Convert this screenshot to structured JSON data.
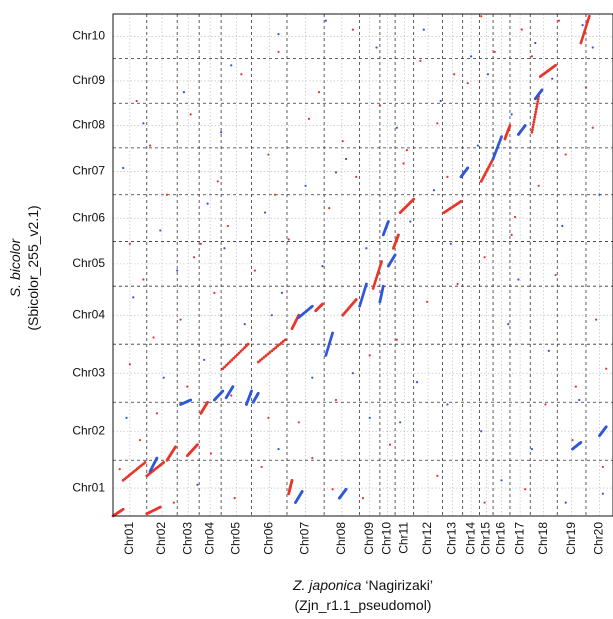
{
  "chart_data": {
    "type": "scatter",
    "title": "",
    "xlabel": {
      "species": "Z. japonica",
      "cultivar": " ‘Nagirizaki’",
      "assembly": "(Zjn_r1.1_pseudomol)"
    },
    "ylabel": {
      "species": "S. bicolor",
      "assembly": "(Sbicolor_255_v2.1)"
    },
    "x_chromosomes": [
      {
        "name": "Chr01",
        "start": 0.0,
        "end": 1.0
      },
      {
        "name": "Chr02",
        "start": 1.0,
        "end": 1.9
      },
      {
        "name": "Chr03",
        "start": 1.9,
        "end": 2.55
      },
      {
        "name": "Chr04",
        "start": 2.55,
        "end": 3.2
      },
      {
        "name": "Chr05",
        "start": 3.2,
        "end": 4.1
      },
      {
        "name": "Chr06",
        "start": 4.1,
        "end": 5.15
      },
      {
        "name": "Chr07",
        "start": 5.15,
        "end": 6.25
      },
      {
        "name": "Chr08",
        "start": 6.25,
        "end": 7.3
      },
      {
        "name": "Chr09",
        "start": 7.3,
        "end": 7.9
      },
      {
        "name": "Chr10",
        "start": 7.9,
        "end": 8.35
      },
      {
        "name": "Chr11",
        "start": 8.35,
        "end": 8.9
      },
      {
        "name": "Chr12",
        "start": 8.9,
        "end": 9.75
      },
      {
        "name": "Chr13",
        "start": 9.75,
        "end": 10.35
      },
      {
        "name": "Chr14",
        "start": 10.35,
        "end": 10.85
      },
      {
        "name": "Chr15",
        "start": 10.85,
        "end": 11.25
      },
      {
        "name": "Chr16",
        "start": 11.25,
        "end": 11.75
      },
      {
        "name": "Chr17",
        "start": 11.75,
        "end": 12.35
      },
      {
        "name": "Chr18",
        "start": 12.35,
        "end": 13.15
      },
      {
        "name": "Chr19",
        "start": 13.15,
        "end": 14.0
      },
      {
        "name": "Chr20",
        "start": 14.0,
        "end": 14.8
      }
    ],
    "y_chromosomes": [
      {
        "name": "Chr01",
        "start": 0.0,
        "end": 1.25
      },
      {
        "name": "Chr02",
        "start": 1.25,
        "end": 2.55
      },
      {
        "name": "Chr03",
        "start": 2.55,
        "end": 3.85
      },
      {
        "name": "Chr04",
        "start": 3.85,
        "end": 5.15
      },
      {
        "name": "Chr05",
        "start": 5.15,
        "end": 6.15
      },
      {
        "name": "Chr06",
        "start": 6.15,
        "end": 7.2
      },
      {
        "name": "Chr07",
        "start": 7.2,
        "end": 8.25
      },
      {
        "name": "Chr08",
        "start": 8.25,
        "end": 9.25
      },
      {
        "name": "Chr09",
        "start": 9.25,
        "end": 10.25
      },
      {
        "name": "Chr10",
        "start": 10.25,
        "end": 11.25
      }
    ],
    "xlim": [
      0,
      14.8
    ],
    "ylim": [
      0,
      11.25
    ],
    "grid": true,
    "series": [
      {
        "color": "#e8352a",
        "segments": [
          [
            [
              0.0,
              0.0
            ],
            [
              0.3,
              0.15
            ]
          ],
          [
            [
              1.0,
              0.05
            ],
            [
              1.4,
              0.2
            ]
          ],
          [
            [
              0.3,
              0.8
            ],
            [
              0.95,
              1.2
            ]
          ],
          [
            [
              1.0,
              0.9
            ],
            [
              1.5,
              1.2
            ]
          ],
          [
            [
              1.6,
              1.25
            ],
            [
              1.85,
              1.55
            ]
          ],
          [
            [
              2.2,
              1.35
            ],
            [
              2.5,
              1.6
            ]
          ],
          [
            [
              2.6,
              2.3
            ],
            [
              2.8,
              2.55
            ]
          ],
          [
            [
              3.25,
              3.3
            ],
            [
              4.0,
              3.85
            ]
          ],
          [
            [
              4.3,
              3.45
            ],
            [
              5.1,
              3.95
            ]
          ],
          [
            [
              5.3,
              4.2
            ],
            [
              5.5,
              4.5
            ]
          ],
          [
            [
              6.0,
              4.6
            ],
            [
              6.2,
              4.75
            ]
          ],
          [
            [
              6.8,
              4.5
            ],
            [
              7.2,
              4.85
            ]
          ],
          [
            [
              7.7,
              5.1
            ],
            [
              7.95,
              5.7
            ]
          ],
          [
            [
              8.3,
              6.0
            ],
            [
              8.45,
              6.3
            ]
          ],
          [
            [
              8.5,
              6.8
            ],
            [
              8.9,
              7.1
            ]
          ],
          [
            [
              9.8,
              6.8
            ],
            [
              10.3,
              7.05
            ]
          ],
          [
            [
              10.9,
              7.5
            ],
            [
              11.25,
              8.0
            ]
          ],
          [
            [
              11.6,
              8.45
            ],
            [
              11.75,
              8.75
            ]
          ],
          [
            [
              12.4,
              8.6
            ],
            [
              12.6,
              9.4
            ]
          ],
          [
            [
              12.65,
              9.85
            ],
            [
              13.1,
              10.1
            ]
          ],
          [
            [
              13.85,
              10.6
            ],
            [
              14.1,
              11.2
            ]
          ],
          [
            [
              5.2,
              0.5
            ],
            [
              5.3,
              0.8
            ]
          ]
        ],
        "points": [
          [
            0.2,
            1.05
          ],
          [
            0.8,
            1.7
          ],
          [
            1.3,
            2.3
          ],
          [
            2.2,
            2.9
          ],
          [
            3.5,
            2.7
          ],
          [
            4.6,
            2.2
          ],
          [
            5.9,
            1.3
          ],
          [
            6.6,
            2.6
          ],
          [
            7.6,
            3.6
          ],
          [
            8.4,
            3.95
          ],
          [
            9.3,
            4.8
          ],
          [
            10.2,
            5.2
          ],
          [
            11.0,
            5.8
          ],
          [
            11.8,
            6.3
          ],
          [
            12.6,
            7.4
          ],
          [
            13.4,
            8.1
          ],
          [
            14.2,
            8.7
          ],
          [
            0.5,
            3.4
          ],
          [
            1.2,
            4.0
          ],
          [
            2.0,
            4.4
          ],
          [
            3.0,
            5.0
          ],
          [
            4.2,
            5.5
          ],
          [
            5.2,
            6.2
          ],
          [
            6.4,
            6.9
          ],
          [
            7.2,
            7.6
          ],
          [
            8.7,
            8.2
          ],
          [
            9.6,
            8.8
          ],
          [
            10.5,
            9.7
          ],
          [
            11.3,
            10.4
          ],
          [
            12.1,
            10.9
          ],
          [
            13.2,
            11.1
          ],
          [
            0.7,
            9.3
          ],
          [
            1.6,
            7.2
          ],
          [
            2.6,
            6.1
          ],
          [
            3.8,
            9.9
          ],
          [
            4.9,
            10.4
          ],
          [
            6.1,
            9.5
          ],
          [
            7.1,
            10.9
          ],
          [
            9.1,
            10.2
          ],
          [
            10.9,
            11.2
          ],
          [
            12.8,
            2.5
          ],
          [
            13.6,
            1.7
          ],
          [
            14.5,
            1.1
          ],
          [
            12.2,
            0.6
          ],
          [
            11.0,
            0.3
          ],
          [
            9.6,
            0.9
          ],
          [
            8.2,
            1.6
          ],
          [
            7.4,
            0.4
          ],
          [
            6.5,
            0.6
          ],
          [
            5.5,
            2.1
          ],
          [
            4.4,
            1.1
          ],
          [
            3.6,
            0.4
          ],
          [
            2.9,
            1.4
          ],
          [
            1.8,
            0.3
          ],
          [
            0.5,
            6.1
          ],
          [
            1.1,
            8.3
          ],
          [
            2.3,
            9.0
          ],
          [
            3.1,
            7.5
          ],
          [
            4.6,
            8.1
          ],
          [
            5.8,
            8.9
          ],
          [
            8.6,
            7.9
          ],
          [
            9.9,
            7.6
          ],
          [
            11.9,
            6.7
          ],
          [
            13.1,
            5.4
          ],
          [
            14.3,
            4.4
          ],
          [
            14.6,
            3.3
          ],
          [
            13.7,
            2.9
          ],
          [
            0.9,
            5.3
          ],
          [
            2.4,
            5.8
          ],
          [
            3.4,
            6.5
          ],
          [
            4.8,
            7.2
          ],
          [
            6.8,
            8.4
          ],
          [
            7.9,
            9.2
          ],
          [
            10.1,
            9.9
          ],
          [
            12.4,
            10.3
          ],
          [
            14.0,
            9.6
          ]
        ]
      },
      {
        "color": "#2f57d9",
        "segments": [
          [
            [
              1.1,
              1.0
            ],
            [
              1.3,
              1.3
            ]
          ],
          [
            [
              2.0,
              2.5
            ],
            [
              2.3,
              2.6
            ]
          ],
          [
            [
              3.0,
              2.6
            ],
            [
              3.25,
              2.8
            ]
          ],
          [
            [
              3.35,
              2.65
            ],
            [
              3.55,
              2.9
            ]
          ],
          [
            [
              3.95,
              2.5
            ],
            [
              4.1,
              2.8
            ]
          ],
          [
            [
              4.15,
              2.55
            ],
            [
              4.3,
              2.75
            ]
          ],
          [
            [
              5.5,
              4.45
            ],
            [
              5.9,
              4.7
            ]
          ],
          [
            [
              6.3,
              3.6
            ],
            [
              6.5,
              4.1
            ]
          ],
          [
            [
              7.3,
              4.7
            ],
            [
              7.5,
              5.2
            ]
          ],
          [
            [
              7.9,
              4.8
            ],
            [
              8.0,
              5.15
            ]
          ],
          [
            [
              8.0,
              6.3
            ],
            [
              8.15,
              6.6
            ]
          ],
          [
            [
              8.15,
              5.6
            ],
            [
              8.35,
              5.85
            ]
          ],
          [
            [
              10.3,
              7.6
            ],
            [
              10.5,
              7.8
            ]
          ],
          [
            [
              11.25,
              8.0
            ],
            [
              11.5,
              8.5
            ]
          ],
          [
            [
              12.0,
              8.55
            ],
            [
              12.2,
              8.75
            ]
          ],
          [
            [
              12.5,
              9.35
            ],
            [
              12.7,
              9.55
            ]
          ],
          [
            [
              13.6,
              1.5
            ],
            [
              13.85,
              1.65
            ]
          ],
          [
            [
              14.4,
              1.8
            ],
            [
              14.6,
              2.0
            ]
          ],
          [
            [
              5.4,
              0.3
            ],
            [
              5.6,
              0.55
            ]
          ],
          [
            [
              6.7,
              0.4
            ],
            [
              6.9,
              0.6
            ]
          ]
        ],
        "points": [
          [
            0.4,
            2.2
          ],
          [
            1.5,
            3.1
          ],
          [
            2.7,
            3.5
          ],
          [
            3.9,
            4.3
          ],
          [
            5.0,
            5.0
          ],
          [
            6.2,
            5.6
          ],
          [
            7.5,
            6.0
          ],
          [
            8.8,
            6.6
          ],
          [
            9.5,
            7.3
          ],
          [
            10.8,
            8.3
          ],
          [
            11.8,
            9.0
          ],
          [
            13.0,
            9.8
          ],
          [
            14.2,
            10.5
          ],
          [
            0.6,
            4.9
          ],
          [
            1.9,
            5.5
          ],
          [
            3.3,
            6.0
          ],
          [
            4.5,
            6.8
          ],
          [
            5.7,
            7.4
          ],
          [
            6.9,
            8.0
          ],
          [
            8.4,
            8.7
          ],
          [
            9.7,
            9.3
          ],
          [
            11.1,
            9.9
          ],
          [
            12.5,
            10.6
          ],
          [
            13.9,
            11.0
          ],
          [
            0.9,
            8.8
          ],
          [
            2.1,
            9.5
          ],
          [
            3.5,
            10.1
          ],
          [
            4.9,
            10.8
          ],
          [
            6.3,
            11.1
          ],
          [
            7.8,
            10.5
          ],
          [
            9.2,
            10.9
          ],
          [
            10.6,
            10.3
          ],
          [
            11.7,
            4.3
          ],
          [
            12.9,
            3.7
          ],
          [
            13.8,
            2.6
          ],
          [
            14.5,
            0.5
          ],
          [
            12.4,
            1.5
          ],
          [
            10.9,
            1.9
          ],
          [
            9.9,
            2.5
          ],
          [
            8.5,
            2.1
          ],
          [
            7.1,
            3.2
          ],
          [
            5.9,
            3.1
          ],
          [
            4.7,
            4.5
          ],
          [
            2.8,
            7.0
          ],
          [
            1.4,
            6.4
          ],
          [
            0.3,
            7.8
          ],
          [
            3.2,
            8.6
          ],
          [
            6.6,
            7.7
          ],
          [
            10.0,
            6.1
          ],
          [
            12.0,
            5.3
          ],
          [
            13.3,
            6.5
          ],
          [
            14.4,
            7.2
          ],
          [
            9.0,
            3.0
          ],
          [
            7.6,
            2.2
          ],
          [
            4.9,
            1.5
          ],
          [
            2.5,
            0.7
          ],
          [
            11.5,
            0.8
          ],
          [
            13.4,
            0.3
          ]
        ]
      }
    ]
  }
}
